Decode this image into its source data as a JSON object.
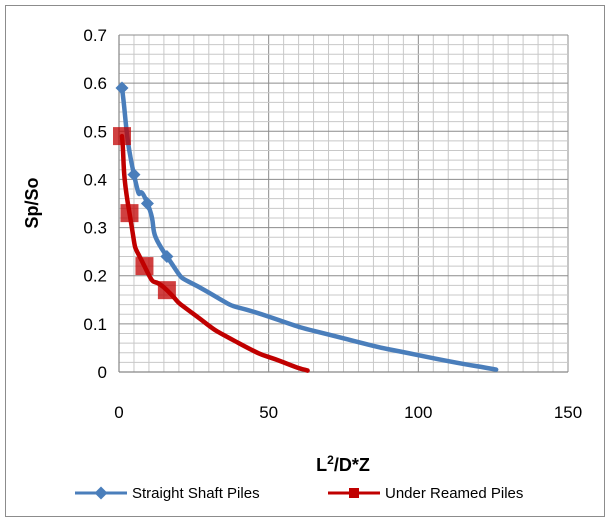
{
  "chart_data": {
    "type": "scatter",
    "title": "",
    "xlabel": "L2/D*Z",
    "xlabel_parts": {
      "base": "L",
      "sup": "2",
      "rest": "/D*Z"
    },
    "ylabel": "Sp/So",
    "xlim": [
      0,
      150
    ],
    "ylim": [
      0,
      0.7
    ],
    "x_ticks": [
      "0",
      "50",
      "100",
      "150"
    ],
    "y_ticks": [
      "0",
      "0.1",
      "0.2",
      "0.3",
      "0.4",
      "0.5",
      "0.6",
      "0.7"
    ],
    "grid": true,
    "legend_position": "bottom",
    "series": [
      {
        "name": "Straight Shaft Piles",
        "color": "#4a7ebb",
        "marker": "diamond",
        "smooth": true,
        "points": [
          [
            1.0,
            0.59
          ],
          [
            5.0,
            0.41
          ],
          [
            9.5,
            0.35
          ],
          [
            16.0,
            0.24
          ],
          [
            30.0,
            0.165
          ],
          [
            50.0,
            0.115
          ],
          [
            75.0,
            0.07
          ],
          [
            100.0,
            0.035
          ],
          [
            126.0,
            0.005
          ]
        ]
      },
      {
        "name": "Under Reamed Piles",
        "color": "#c00000",
        "marker": "square",
        "smooth": true,
        "points": [
          [
            1.0,
            0.49
          ],
          [
            3.5,
            0.33
          ],
          [
            8.5,
            0.22
          ],
          [
            16.0,
            0.17
          ],
          [
            25.0,
            0.12
          ],
          [
            40.0,
            0.06
          ],
          [
            55.0,
            0.02
          ],
          [
            63.0,
            0.003
          ]
        ]
      }
    ]
  }
}
